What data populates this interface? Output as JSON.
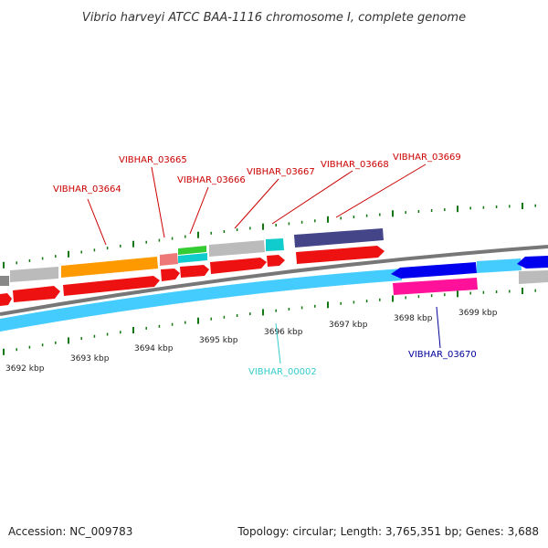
{
  "title": "Vibrio harveyi ATCC BAA-1116 chromosome I, complete genome",
  "footer": {
    "accession": "Accession: NC_009783",
    "summary": "Topology: circular; Length: 3,765,351 bp; Genes: 3,688"
  },
  "tick_labels": [
    "3692 kbp",
    "3693 kbp",
    "3694 kbp",
    "3695 kbp",
    "3696 kbp",
    "3697 kbp",
    "3698 kbp",
    "3699 kbp"
  ],
  "gene_labels": [
    {
      "text": "VIBHAR_03664",
      "color": "#cc0000"
    },
    {
      "text": "VIBHAR_03665",
      "color": "#cc0000"
    },
    {
      "text": "VIBHAR_03666",
      "color": "#cc0000"
    },
    {
      "text": "VIBHAR_03667",
      "color": "#cc0000"
    },
    {
      "text": "VIBHAR_03668",
      "color": "#cc0000"
    },
    {
      "text": "VIBHAR_03669",
      "color": "#cc0000"
    },
    {
      "text": "VIBHAR_00002",
      "color": "#33cccc"
    },
    {
      "text": "VIBHAR_03670",
      "color": "#000099"
    }
  ],
  "colors": {
    "cds_forward": "#ee1111",
    "orange": "#ff9900",
    "gray": "#bbbbbb",
    "salmon": "#ee7777",
    "green": "#33cc33",
    "cyan": "#11cccc",
    "navy": "#444488",
    "sky_blue": "#44ccff",
    "blue": "#0000ee",
    "magenta": "#ff1199",
    "backbone": "#777777",
    "tick": "#117711"
  }
}
